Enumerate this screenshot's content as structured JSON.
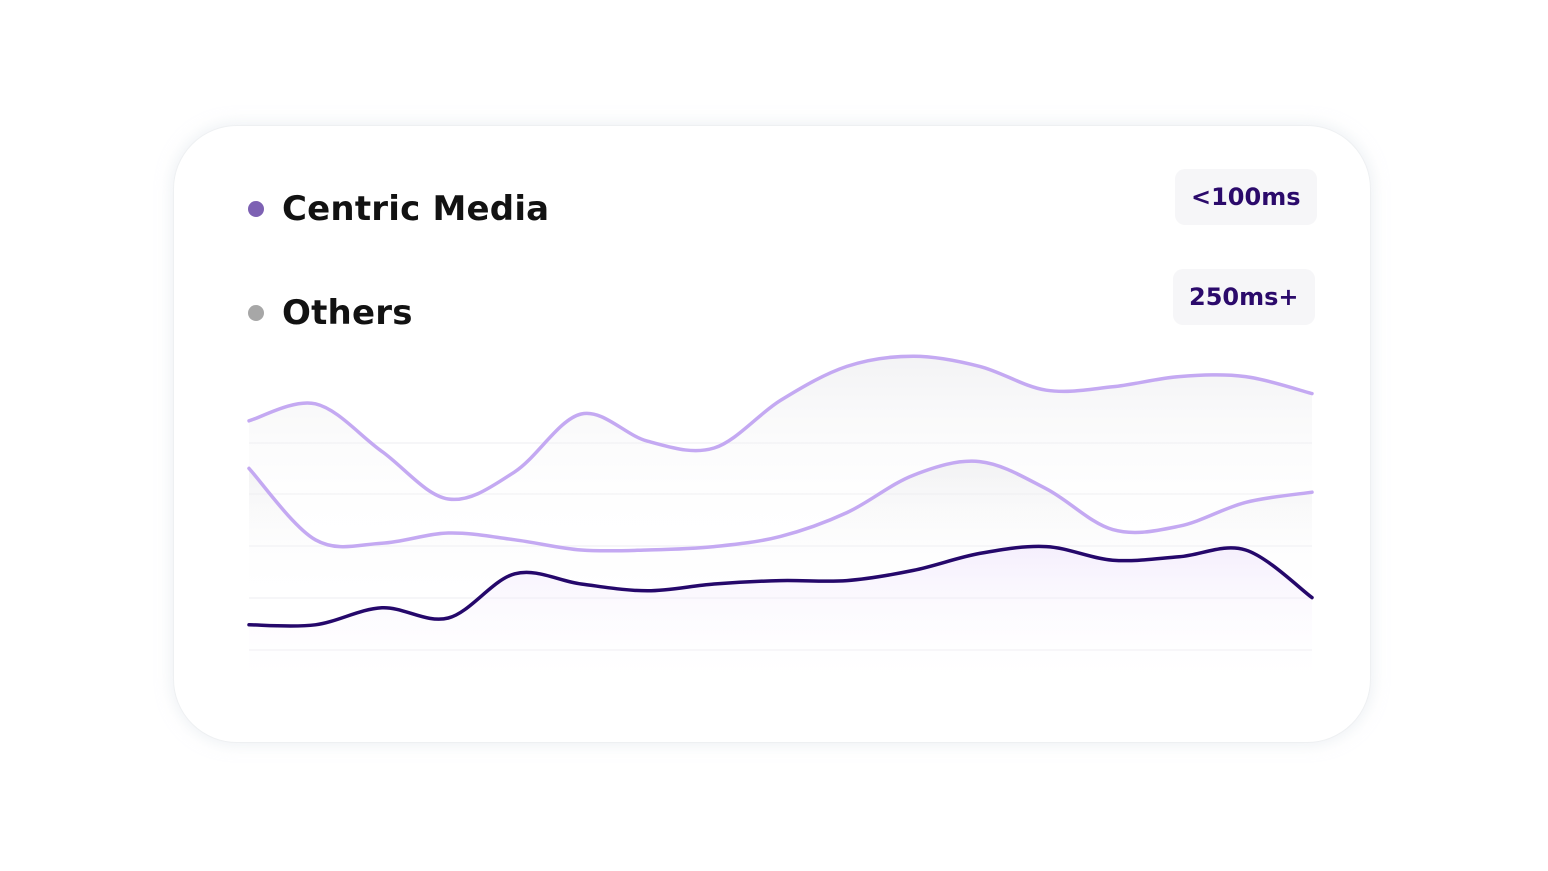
{
  "legend": {
    "items": [
      {
        "label": "Centric Media",
        "color": "#7d61b3"
      },
      {
        "label": "Others",
        "color": "#a7a7a7"
      }
    ]
  },
  "badges": {
    "fast": "<100ms",
    "slow": "250ms+"
  },
  "chart_data": {
    "type": "line",
    "x": [
      0,
      1,
      2,
      3,
      4,
      5,
      6,
      7,
      8,
      9,
      10,
      11,
      12,
      13,
      14,
      15,
      16
    ],
    "ylim": [
      0,
      100
    ],
    "grid": true,
    "series": [
      {
        "color": "#c4a9f2",
        "values": [
          78,
          83,
          69,
          55,
          63,
          80,
          72,
          70,
          84,
          94,
          97,
          94,
          87,
          88,
          91,
          91,
          86
        ]
      },
      {
        "color": "#c4a9f2",
        "values": [
          64,
          43,
          42,
          45,
          43,
          40,
          40,
          41,
          44,
          51,
          62,
          66,
          58,
          46,
          47,
          54,
          57
        ]
      },
      {
        "color": "#25086b",
        "values": [
          18,
          18,
          23,
          20,
          33,
          30,
          28,
          30,
          31,
          31,
          34,
          39,
          41,
          37,
          38,
          40,
          26
        ]
      }
    ]
  }
}
